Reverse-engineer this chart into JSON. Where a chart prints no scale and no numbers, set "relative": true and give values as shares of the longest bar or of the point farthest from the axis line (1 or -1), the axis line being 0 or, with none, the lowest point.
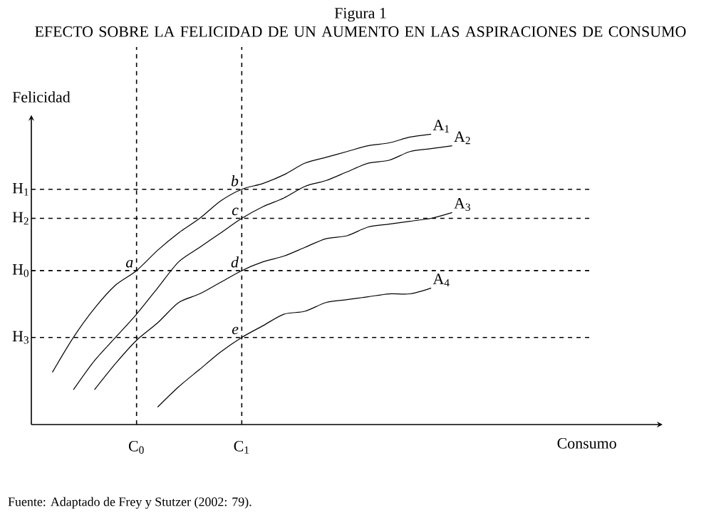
{
  "chart_data": {
    "type": "line",
    "title": "Figura 1",
    "subtitle": "EFECTO SOBRE LA FELICIDAD DE UN AUMENTO EN LAS ASPIRACIONES DE CONSUMO",
    "xlabel": "Consumo",
    "ylabel": "Felicidad",
    "relative": true,
    "categories": [
      null,
      null,
      null,
      null,
      null,
      "C$_{0}$",
      null,
      null,
      null,
      null,
      "C$_{1}$",
      null,
      null,
      null,
      null,
      null,
      null,
      null,
      null,
      null,
      null,
      null,
      null,
      null,
      null,
      null,
      null,
      null,
      null,
      null,
      null
    ],
    "series": [
      {
        "name": "A$_{1}$",
        "color": "#000000",
        "values": [
          null,
          0.18,
          0.3,
          0.4,
          0.48,
          0.53,
          0.6,
          0.66,
          0.71,
          0.77,
          0.81,
          0.83,
          0.86,
          0.9,
          0.92,
          0.94,
          0.96,
          0.97,
          0.99,
          1,
          null,
          null,
          null,
          null,
          null,
          null,
          null,
          null,
          null,
          null,
          null
        ]
      },
      {
        "name": "A$_{2}$",
        "color": "#000000",
        "values": [
          null,
          null,
          0.12,
          0.22,
          0.3,
          0.38,
          0.47,
          0.56,
          0.61,
          0.66,
          0.71,
          0.75,
          0.78,
          0.82,
          0.84,
          0.87,
          0.9,
          0.91,
          0.94,
          0.95,
          0.96,
          null,
          null,
          null,
          null,
          null,
          null,
          null,
          null,
          null,
          null
        ]
      },
      {
        "name": "A$_{3}$",
        "color": "#000000",
        "values": [
          null,
          null,
          null,
          0.12,
          0.21,
          0.29,
          0.35,
          0.42,
          0.45,
          0.49,
          0.53,
          0.56,
          0.58,
          0.61,
          0.64,
          0.65,
          0.68,
          0.69,
          0.7,
          0.71,
          0.73,
          null,
          null,
          null,
          null,
          null,
          null,
          null,
          null,
          null,
          null
        ]
      },
      {
        "name": "A$_{4}$",
        "color": "#000000",
        "values": [
          null,
          null,
          null,
          null,
          null,
          null,
          0.06,
          0.13,
          0.19,
          0.25,
          0.3,
          0.34,
          0.38,
          0.39,
          0.42,
          0.43,
          0.44,
          0.45,
          0.45,
          0.47,
          null,
          null,
          null,
          null,
          null,
          null,
          null,
          null,
          null,
          null,
          null
        ]
      }
    ],
    "ref_lines": [
      {
        "axis": "y",
        "value": 0.81,
        "label": "H$_{1}$",
        "line_style": "dashed"
      },
      {
        "axis": "y",
        "value": 0.71,
        "label": "H$_{2}$",
        "line_style": "dashed"
      },
      {
        "axis": "y",
        "value": 0.53,
        "label": "H$_{0}$",
        "line_style": "dashed"
      },
      {
        "axis": "y",
        "value": 0.3,
        "label": "H$_{3}$",
        "line_style": "dashed"
      },
      {
        "axis": "x",
        "value": "C$_{0}$",
        "line_style": "dashed"
      },
      {
        "axis": "x",
        "value": "C$_{1}$",
        "line_style": "dashed"
      }
    ],
    "annotations": [
      {
        "text": "a",
        "x": "C$_{0}$",
        "y": 0.53
      },
      {
        "text": "b",
        "x": "C$_{1}$",
        "y": 0.81
      },
      {
        "text": "c",
        "x": "C$_{1}$",
        "y": 0.71
      },
      {
        "text": "d",
        "x": "C$_{1}$",
        "y": 0.53
      },
      {
        "text": "e",
        "x": "C$_{1}$",
        "y": 0.3
      },
      "Fuente: Adaptado de Frey y Stutzer (2002: 79)."
    ]
  }
}
